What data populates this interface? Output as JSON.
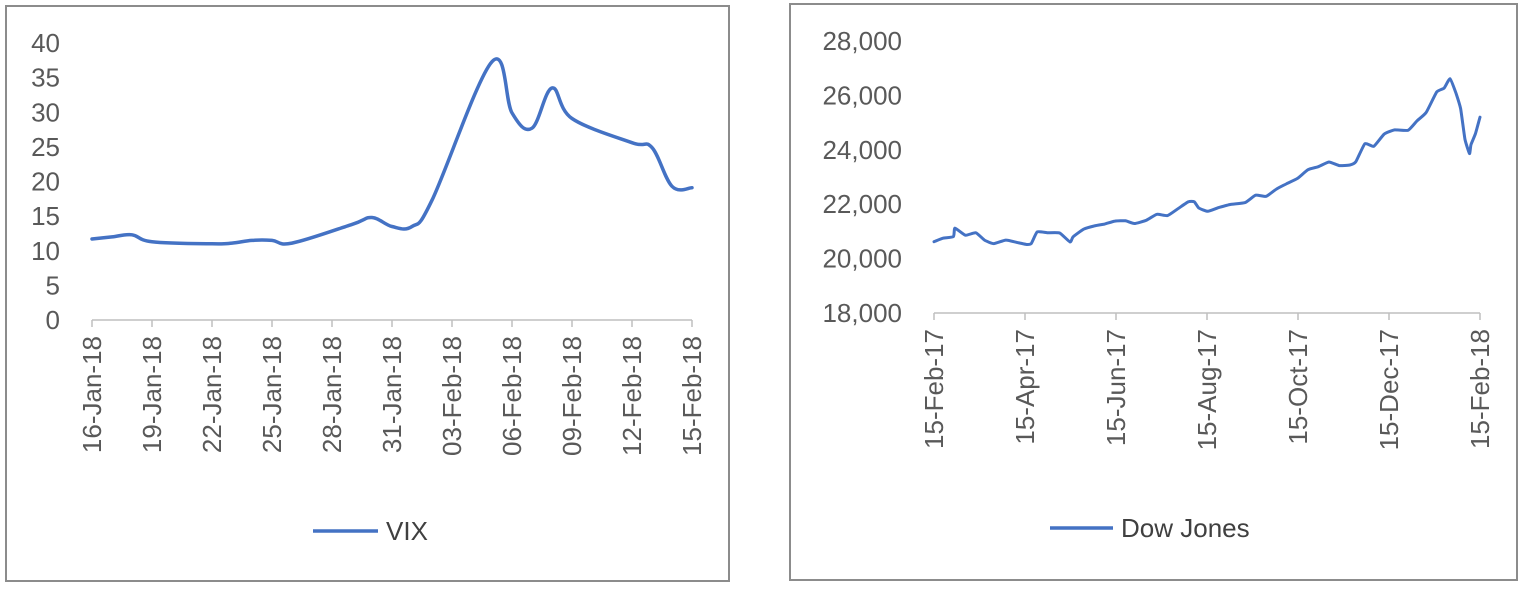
{
  "chart_data": [
    {
      "type": "line",
      "color": "#4472c4",
      "legend_position": "bottom",
      "grid": false,
      "ylim": [
        0,
        40
      ],
      "yticks": [
        0,
        5,
        10,
        15,
        20,
        25,
        30,
        35,
        40
      ],
      "ytick_labels": [
        "0",
        "5",
        "10",
        "15",
        "20",
        "25",
        "30",
        "35",
        "40"
      ],
      "x_range": [
        "2018-01-16",
        "2018-02-15"
      ],
      "xtick_labels": [
        "16-Jan-18",
        "19-Jan-18",
        "22-Jan-18",
        "25-Jan-18",
        "28-Jan-18",
        "31-Jan-18",
        "03-Feb-18",
        "06-Feb-18",
        "09-Feb-18",
        "12-Feb-18",
        "15-Feb-18"
      ],
      "series": [
        {
          "name": "VIX",
          "x": [
            "2018-01-16",
            "2018-01-17",
            "2018-01-18",
            "2018-01-19",
            "2018-01-22",
            "2018-01-23",
            "2018-01-24",
            "2018-01-25",
            "2018-01-26",
            "2018-01-29",
            "2018-01-30",
            "2018-01-31",
            "2018-02-01",
            "2018-02-02",
            "2018-02-05",
            "2018-02-06",
            "2018-02-07",
            "2018-02-08",
            "2018-02-09",
            "2018-02-12",
            "2018-02-13",
            "2018-02-14",
            "2018-02-15"
          ],
          "y": [
            11.7,
            12.0,
            12.3,
            11.3,
            11.0,
            11.1,
            11.5,
            11.5,
            11.1,
            13.8,
            14.8,
            13.5,
            13.5,
            17.3,
            37.3,
            29.9,
            27.7,
            33.5,
            29.1,
            25.6,
            24.9,
            19.3,
            19.1
          ]
        }
      ]
    },
    {
      "type": "line",
      "color": "#4472c4",
      "legend_position": "bottom",
      "grid": false,
      "ylim": [
        18000,
        28000
      ],
      "yticks": [
        18000,
        20000,
        22000,
        24000,
        26000,
        28000
      ],
      "ytick_labels": [
        "18,000",
        "20,000",
        "22,000",
        "24,000",
        "26,000",
        "28,000"
      ],
      "x_range": [
        "2017-02-15",
        "2018-02-15"
      ],
      "xtick_labels": [
        "15-Feb-17",
        "15-Apr-17",
        "15-Jun-17",
        "15-Aug-17",
        "15-Oct-17",
        "15-Dec-17",
        "15-Feb-18"
      ],
      "series": [
        {
          "name": "Dow Jones",
          "x": [
            "2017-02-15",
            "2017-02-21",
            "2017-02-28",
            "2017-03-01",
            "2017-03-08",
            "2017-03-15",
            "2017-03-21",
            "2017-03-27",
            "2017-04-04",
            "2017-04-12",
            "2017-04-18",
            "2017-04-21",
            "2017-04-25",
            "2017-05-02",
            "2017-05-10",
            "2017-05-17",
            "2017-05-19",
            "2017-05-26",
            "2017-06-02",
            "2017-06-09",
            "2017-06-16",
            "2017-06-23",
            "2017-06-29",
            "2017-07-07",
            "2017-07-14",
            "2017-07-21",
            "2017-07-28",
            "2017-08-04",
            "2017-08-08",
            "2017-08-11",
            "2017-08-17",
            "2017-08-24",
            "2017-09-01",
            "2017-09-11",
            "2017-09-18",
            "2017-09-25",
            "2017-10-02",
            "2017-10-09",
            "2017-10-16",
            "2017-10-23",
            "2017-10-30",
            "2017-11-06",
            "2017-11-13",
            "2017-11-20",
            "2017-11-24",
            "2017-11-30",
            "2017-12-06",
            "2017-12-13",
            "2017-12-20",
            "2017-12-29",
            "2018-01-04",
            "2018-01-10",
            "2018-01-17",
            "2018-01-22",
            "2018-01-26",
            "2018-01-30",
            "2018-02-02",
            "2018-02-05",
            "2018-02-08",
            "2018-02-09",
            "2018-02-12",
            "2018-02-15"
          ],
          "y": [
            20620,
            20750,
            20810,
            21120,
            20860,
            20950,
            20670,
            20550,
            20680,
            20590,
            20520,
            20550,
            20980,
            20950,
            20940,
            20610,
            20800,
            21080,
            21200,
            21270,
            21380,
            21390,
            21290,
            21410,
            21630,
            21580,
            21830,
            22090,
            22090,
            21860,
            21740,
            21870,
            21990,
            22060,
            22330,
            22290,
            22560,
            22760,
            22950,
            23270,
            23380,
            23550,
            23420,
            23440,
            23560,
            24220,
            24130,
            24580,
            24730,
            24720,
            25070,
            25370,
            26120,
            26270,
            26610,
            26070,
            25520,
            24380,
            23860,
            24190,
            24600,
            25200
          ]
        }
      ]
    }
  ]
}
